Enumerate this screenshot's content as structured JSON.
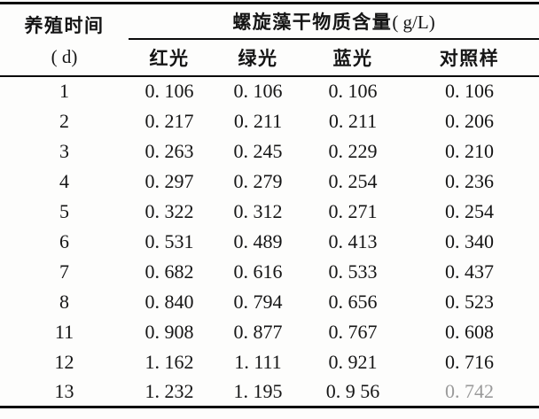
{
  "table": {
    "col1_header": {
      "line1": "养殖时间",
      "line2": "( d)"
    },
    "span_header": {
      "text": "螺旋藻干物质含量",
      "unit": "( g/L)"
    },
    "sub_headers": [
      "红光",
      "绿光",
      "蓝光",
      "对照样"
    ],
    "rows": [
      {
        "day": "1",
        "values": [
          "0. 106",
          "0. 106",
          "0. 106",
          "0. 106"
        ]
      },
      {
        "day": "2",
        "values": [
          "0. 217",
          "0. 211",
          "0. 211",
          "0. 206"
        ]
      },
      {
        "day": "3",
        "values": [
          "0. 263",
          "0. 245",
          "0. 229",
          "0. 210"
        ]
      },
      {
        "day": "4",
        "values": [
          "0. 297",
          "0. 279",
          "0. 254",
          "0. 236"
        ]
      },
      {
        "day": "5",
        "values": [
          "0. 322",
          "0. 312",
          "0. 271",
          "0. 254"
        ]
      },
      {
        "day": "6",
        "values": [
          "0. 531",
          "0. 489",
          "0. 413",
          "0. 340"
        ]
      },
      {
        "day": "7",
        "values": [
          "0. 682",
          "0. 616",
          "0. 533",
          "0. 437"
        ]
      },
      {
        "day": "8",
        "values": [
          "0. 840",
          "0. 794",
          "0. 656",
          "0. 523"
        ]
      },
      {
        "day": "11",
        "values": [
          "0. 908",
          "0. 877",
          "0. 767",
          "0. 608"
        ]
      },
      {
        "day": "12",
        "values": [
          "1. 162",
          "1. 111",
          "0. 921",
          "0. 716"
        ]
      },
      {
        "day": "13",
        "values": [
          "1. 232",
          "1. 195",
          "0. 9 56",
          "0. 742"
        ],
        "faded_last": true
      }
    ]
  },
  "chart_data": {
    "type": "table",
    "title": "螺旋藻干物质含量( g/L)",
    "xlabel": "养殖时间( d)",
    "x": [
      1,
      2,
      3,
      4,
      5,
      6,
      7,
      8,
      11,
      12,
      13
    ],
    "series": [
      {
        "name": "红光",
        "values": [
          0.106,
          0.217,
          0.263,
          0.297,
          0.322,
          0.531,
          0.682,
          0.84,
          0.908,
          1.162,
          1.232
        ]
      },
      {
        "name": "绿光",
        "values": [
          0.106,
          0.211,
          0.245,
          0.279,
          0.312,
          0.489,
          0.616,
          0.794,
          0.877,
          1.111,
          1.195
        ]
      },
      {
        "name": "蓝光",
        "values": [
          0.106,
          0.211,
          0.229,
          0.254,
          0.271,
          0.413,
          0.533,
          0.656,
          0.767,
          0.921,
          0.956
        ]
      },
      {
        "name": "对照样",
        "values": [
          0.106,
          0.206,
          0.21,
          0.236,
          0.254,
          0.34,
          0.437,
          0.523,
          0.608,
          0.716,
          0.742
        ]
      }
    ],
    "colors": {
      "text": "#151515",
      "rule": "#0b0b0b",
      "background": "#fdfdfc",
      "faded_text": "#9a9a9a"
    }
  }
}
